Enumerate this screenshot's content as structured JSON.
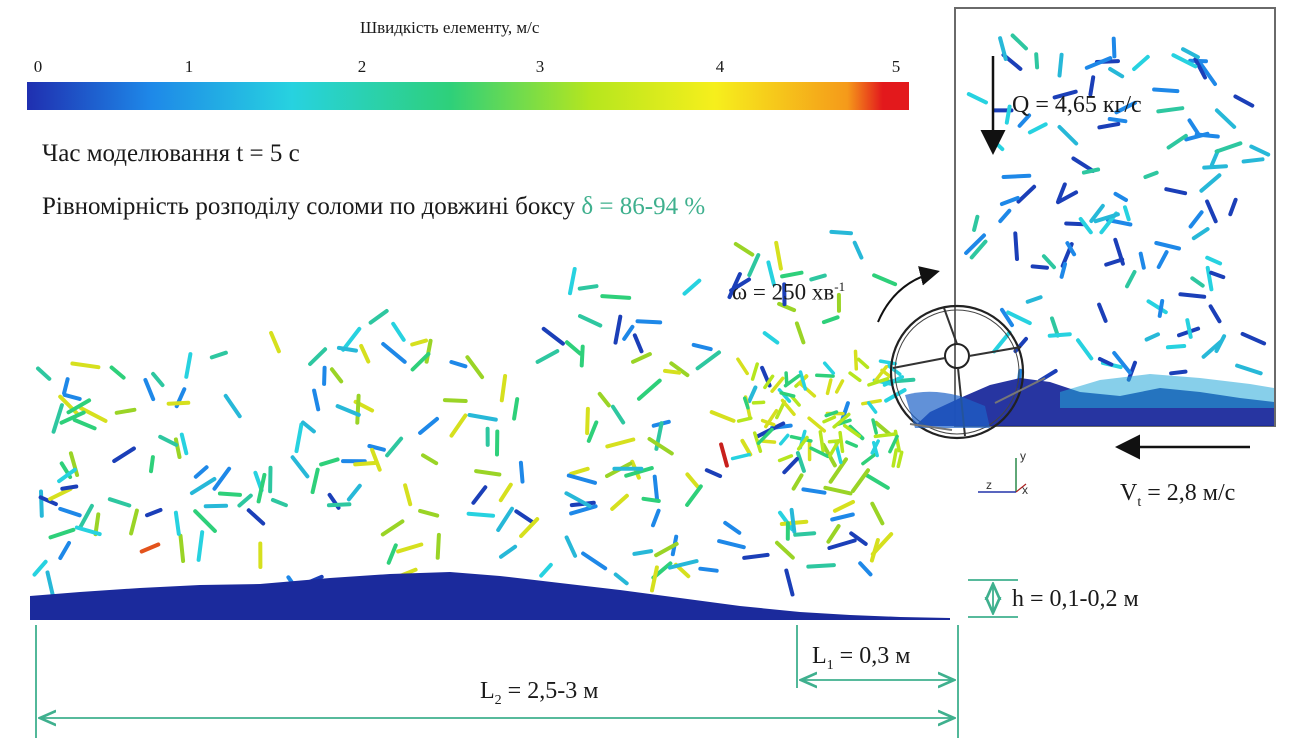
{
  "colorbar": {
    "title": "Швидкість елементу, м/с",
    "ticks": [
      "0",
      "1",
      "2",
      "3",
      "4",
      "5"
    ],
    "stops": [
      "#1f2fb0",
      "#1e88e8",
      "#27d2e0",
      "#2ed07a",
      "#b6e61e",
      "#f6ef1c",
      "#f59a1a",
      "#e3191c"
    ]
  },
  "time_label": "Час моделювання t = 5 с",
  "uniformity": {
    "label": "Рівномірність розподілу соломи по довжині боксу ",
    "value": "δ = 86-94 %"
  },
  "omega": {
    "text": "ω = 250 хв",
    "sup": "-1"
  },
  "flow": {
    "text": "Q = 4,65 кг/с"
  },
  "velocity": {
    "prefix": "V",
    "sub": "t",
    "suffix": " = 2,8 м/с"
  },
  "height": {
    "text": "h = 0,1-0,2 м"
  },
  "l1": {
    "prefix": "L",
    "sub": "1",
    "suffix": " = 0,3 м"
  },
  "l2": {
    "prefix": "L",
    "sub": "2",
    "suffix": " = 2,5-3 м"
  },
  "axes": {
    "y": "y",
    "z": "z",
    "x": "x"
  },
  "colors": {
    "dimension": "#3fb08e",
    "ground": "#1b2a9c",
    "frame": "#555555",
    "arrow": "#111111"
  }
}
